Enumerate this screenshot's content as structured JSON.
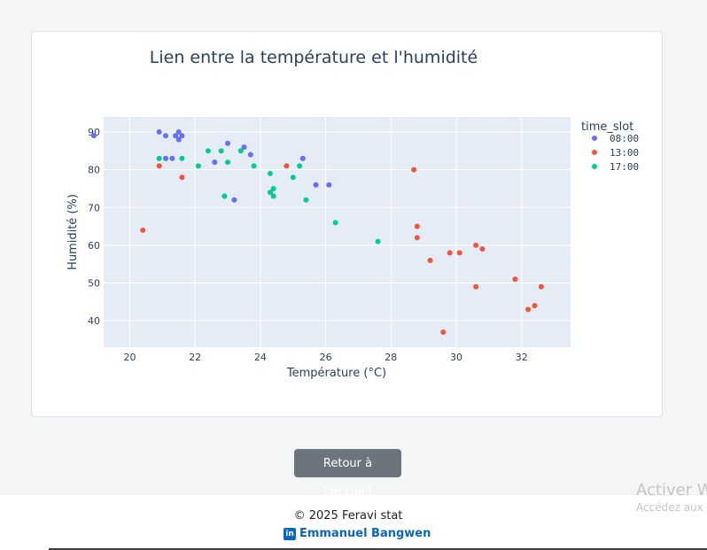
{
  "chart_data": {
    "type": "scatter",
    "title": "Lien entre la température et l'humidité",
    "xlabel": "Température (°C)",
    "ylabel": "Humidité (%)",
    "xlim": [
      19.2,
      33.5
    ],
    "ylim": [
      33,
      94
    ],
    "x_ticks": [
      20,
      22,
      24,
      26,
      28,
      30,
      32
    ],
    "y_ticks": [
      40,
      50,
      60,
      70,
      80,
      90
    ],
    "legend_title": "time_slot",
    "legend_position": "right",
    "grid": true,
    "series": [
      {
        "name": "08:00",
        "color": "#636efa",
        "points": [
          [
            18.9,
            89
          ],
          [
            20.9,
            90
          ],
          [
            21.1,
            89
          ],
          [
            21.4,
            89
          ],
          [
            21.5,
            90
          ],
          [
            21.6,
            89
          ],
          [
            21.5,
            88
          ],
          [
            21.1,
            83
          ],
          [
            21.3,
            83
          ],
          [
            22.6,
            82
          ],
          [
            23.0,
            87
          ],
          [
            23.5,
            86
          ],
          [
            23.7,
            84
          ],
          [
            23.2,
            72
          ],
          [
            25.3,
            83
          ],
          [
            25.7,
            76
          ],
          [
            26.1,
            76
          ]
        ]
      },
      {
        "name": "13:00",
        "color": "#ef553b",
        "points": [
          [
            20.9,
            81
          ],
          [
            21.6,
            78
          ],
          [
            20.4,
            64
          ],
          [
            24.8,
            81
          ],
          [
            28.7,
            80
          ],
          [
            28.8,
            65
          ],
          [
            28.8,
            62
          ],
          [
            29.2,
            56
          ],
          [
            29.8,
            58
          ],
          [
            30.1,
            58
          ],
          [
            30.6,
            60
          ],
          [
            30.8,
            59
          ],
          [
            30.6,
            49
          ],
          [
            29.6,
            37
          ],
          [
            31.8,
            51
          ],
          [
            32.2,
            43
          ],
          [
            32.4,
            44
          ],
          [
            32.6,
            49
          ]
        ]
      },
      {
        "name": "17:00",
        "color": "#00cc96",
        "points": [
          [
            20.9,
            83
          ],
          [
            21.6,
            83
          ],
          [
            22.1,
            81
          ],
          [
            22.4,
            85
          ],
          [
            22.8,
            85
          ],
          [
            23.0,
            82
          ],
          [
            22.9,
            73
          ],
          [
            23.4,
            85
          ],
          [
            23.8,
            81
          ],
          [
            24.3,
            79
          ],
          [
            24.3,
            74
          ],
          [
            24.4,
            75
          ],
          [
            24.4,
            73
          ],
          [
            25.0,
            78
          ],
          [
            25.2,
            81
          ],
          [
            25.4,
            72
          ],
          [
            26.3,
            66
          ],
          [
            27.6,
            61
          ]
        ]
      }
    ]
  },
  "buttons": {
    "home": "Retour à l'accueil"
  },
  "footer": {
    "copyright": "© 2025 Feravi stat",
    "author": "Emmanuel Bangwen",
    "author_icon": "linkedin-icon"
  },
  "watermark": {
    "line1": "Activer W",
    "line2": "Accédez aux"
  }
}
